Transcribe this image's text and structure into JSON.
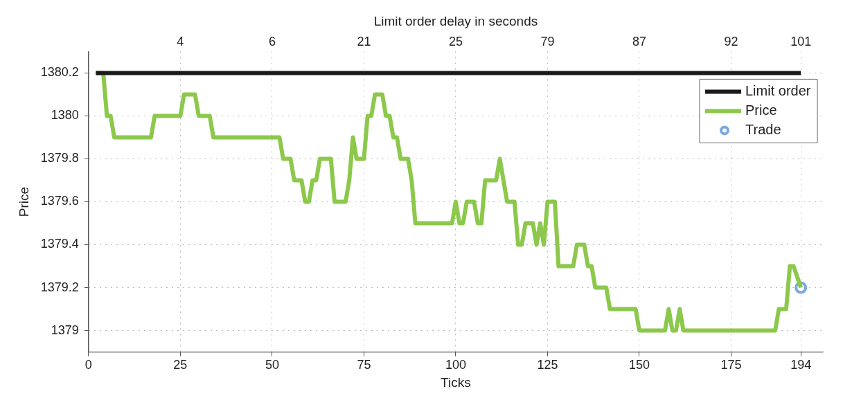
{
  "chart_data": {
    "type": "line",
    "xlabel": "Ticks",
    "ylabel": "Price",
    "x2label": "Limit order delay in seconds",
    "xlim": [
      0,
      200
    ],
    "xticks": [
      0,
      25,
      50,
      75,
      100,
      125,
      150,
      175,
      194
    ],
    "annotations": [
      "4",
      "6",
      "21",
      "25",
      "79",
      "87",
      "92",
      "101"
    ],
    "ylim": [
      1378.9,
      1380.3
    ],
    "yticks": [
      1379,
      1379.2,
      1379.4,
      1379.6,
      1379.8,
      1380,
      1380.2
    ],
    "grid": true,
    "legend": "top right",
    "line_style": "solid",
    "series": [
      {
        "name": "Limit order",
        "type": "line",
        "color": "#1a1a1a",
        "x": [
          2,
          194
        ],
        "values": [
          1380.2,
          1380.2
        ]
      },
      {
        "name": "Price",
        "type": "line",
        "color": "#8cc84b",
        "x": [
          2,
          4,
          5,
          6,
          7,
          17,
          18,
          25,
          26,
          29,
          30,
          33,
          34,
          52,
          53,
          55,
          56,
          58,
          59,
          60,
          61,
          62,
          63,
          66,
          67,
          70,
          71,
          72,
          73,
          75,
          76,
          77,
          78,
          80,
          81,
          82,
          83,
          84,
          85,
          87,
          88,
          89,
          99,
          100,
          101,
          102,
          103,
          105,
          106,
          107,
          108,
          111,
          112,
          114,
          116,
          117,
          118,
          119,
          121,
          122,
          123,
          124,
          125,
          126,
          127,
          128,
          132,
          133,
          135,
          136,
          137,
          138,
          141,
          142,
          149,
          150,
          157,
          158,
          159,
          160,
          161,
          162,
          187,
          188,
          190,
          191,
          192,
          194
        ],
        "values": [
          1380.2,
          1380.2,
          1380,
          1380,
          1379.9,
          1379.9,
          1380,
          1380,
          1380.1,
          1380.1,
          1380,
          1380,
          1379.9,
          1379.9,
          1379.8,
          1379.8,
          1379.7,
          1379.7,
          1379.6,
          1379.6,
          1379.7,
          1379.7,
          1379.8,
          1379.8,
          1379.6,
          1379.6,
          1379.7,
          1379.9,
          1379.8,
          1379.8,
          1380,
          1380,
          1380.1,
          1380.1,
          1380,
          1380,
          1379.9,
          1379.9,
          1379.8,
          1379.8,
          1379.7,
          1379.5,
          1379.5,
          1379.6,
          1379.5,
          1379.5,
          1379.6,
          1379.6,
          1379.5,
          1379.5,
          1379.7,
          1379.7,
          1379.8,
          1379.6,
          1379.6,
          1379.4,
          1379.4,
          1379.5,
          1379.5,
          1379.4,
          1379.5,
          1379.4,
          1379.6,
          1379.6,
          1379.6,
          1379.3,
          1379.3,
          1379.4,
          1379.4,
          1379.3,
          1379.3,
          1379.2,
          1379.2,
          1379.1,
          1379.1,
          1379,
          1379,
          1379.1,
          1379,
          1379,
          1379.1,
          1379,
          1379,
          1379.1,
          1379.1,
          1379.3,
          1379.3,
          1379.2
        ]
      },
      {
        "name": "Trade",
        "type": "scatter",
        "marker": "circle",
        "color": "#7aa9e0",
        "x": [
          194
        ],
        "values": [
          1379.2
        ]
      }
    ]
  }
}
